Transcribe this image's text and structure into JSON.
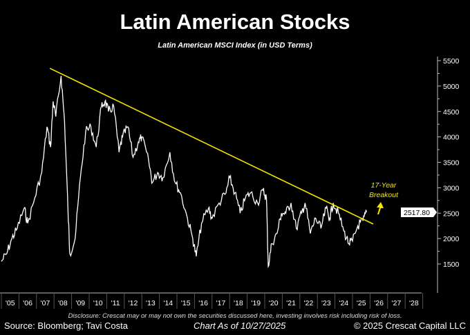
{
  "chart_data": {
    "type": "line",
    "title": "Latin American Stocks",
    "subtitle": "Latin American MSCI Index (in USD Terms)",
    "xlabel": "",
    "ylabel": "",
    "xlim": [
      2005,
      2029
    ],
    "ylim": [
      1500,
      5500
    ],
    "x_tick_labels": [
      "'05",
      "'06",
      "'07",
      "'08",
      "'09",
      "'10",
      "'11",
      "'12",
      "'13",
      "'14",
      "'15",
      "'16",
      "'17",
      "'18",
      "'19",
      "'20",
      "'21",
      "'22",
      "'23",
      "'24",
      "'25",
      "'26",
      "'27",
      "'28"
    ],
    "y_ticks": [
      1500,
      2000,
      2500,
      3000,
      3500,
      4000,
      4500,
      5000,
      5500
    ],
    "series": [
      {
        "name": "Latin American MSCI Index",
        "color": "#ffffff",
        "x": [
          2005.0,
          2005.3,
          2005.6,
          2005.9,
          2006.3,
          2006.5,
          2006.9,
          2007.3,
          2007.6,
          2007.8,
          2007.95,
          2008.1,
          2008.4,
          2008.6,
          2008.8,
          2008.9,
          2009.2,
          2009.5,
          2009.8,
          2010.1,
          2010.4,
          2010.7,
          2010.9,
          2011.1,
          2011.4,
          2011.7,
          2011.9,
          2012.2,
          2012.5,
          2012.8,
          2013.0,
          2013.4,
          2013.6,
          2013.9,
          2014.2,
          2014.6,
          2014.9,
          2015.2,
          2015.6,
          2015.9,
          2016.1,
          2016.4,
          2016.8,
          2017.0,
          2017.4,
          2017.8,
          2018.0,
          2018.3,
          2018.6,
          2018.9,
          2019.2,
          2019.6,
          2019.9,
          2020.1,
          2020.2,
          2020.4,
          2020.7,
          2020.95,
          2021.2,
          2021.5,
          2021.8,
          2022.1,
          2022.3,
          2022.6,
          2022.9,
          2023.2,
          2023.5,
          2023.7,
          2023.9,
          2024.2,
          2024.5,
          2024.8,
          2025.0,
          2025.3,
          2025.6,
          2025.8
        ],
        "y": [
          1550,
          1700,
          2000,
          2200,
          2600,
          2300,
          2800,
          3300,
          4200,
          3800,
          4700,
          4400,
          5200,
          4300,
          2500,
          1700,
          2000,
          3200,
          4100,
          4200,
          3800,
          4600,
          4700,
          4500,
          4600,
          3700,
          4000,
          4200,
          3600,
          3900,
          4000,
          3500,
          3100,
          3300,
          3200,
          3700,
          3100,
          2900,
          2400,
          2000,
          1650,
          2300,
          2600,
          2400,
          2700,
          2900,
          3200,
          2900,
          2500,
          2800,
          2900,
          2700,
          2950,
          2800,
          1450,
          1900,
          2100,
          2500,
          2500,
          2700,
          2200,
          2500,
          2700,
          2100,
          2400,
          2200,
          2600,
          2400,
          2700,
          2500,
          2150,
          1900,
          1950,
          2250,
          2350,
          2517.8
        ]
      }
    ],
    "trendline": {
      "color": "#f2e600",
      "x": [
        2007.76,
        2026.18
      ],
      "y": [
        5350,
        2286
      ]
    },
    "last_value_label": "2517.80",
    "annotation": {
      "text_line1": "17-Year",
      "text_line2": "Breakout",
      "color": "#f2e600"
    },
    "grid": false,
    "legend": "none"
  },
  "footer": {
    "disclosure": "Disclosure: Crescat may or may not own the securities discussed here, investing involves risk including risk of loss.",
    "source": "Source: Bloomberg; Tavi Costa",
    "chart_date": "Chart As of 10/27/2025",
    "copyright": "© 2025 Crescat Capital LLC"
  }
}
